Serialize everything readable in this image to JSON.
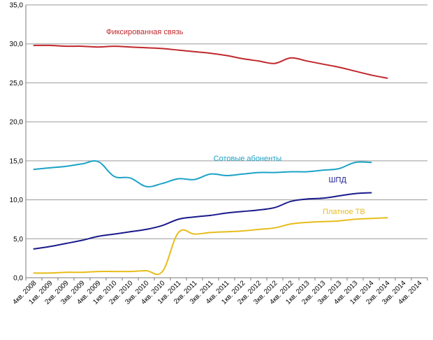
{
  "chart_data": {
    "type": "line",
    "title": "",
    "xlabel": "",
    "ylabel": "",
    "ylim": [
      0,
      35
    ],
    "y_ticks": [
      "0,0",
      "5,0",
      "10,0",
      "15,0",
      "20,0",
      "25,0",
      "30,0",
      "35,0"
    ],
    "grid": true,
    "legend": "inline labels",
    "categories": [
      "4кв. 2008",
      "1кв. 2009",
      "2кв. 2009",
      "3кв. 2009",
      "4кв. 2009",
      "1кв. 2010",
      "2кв. 2010",
      "3кв. 2010",
      "4кв. 2010",
      "1кв. 2011",
      "2кв. 2011",
      "3кв. 2011",
      "4кв. 2011",
      "1кв. 2012",
      "2кв. 2012",
      "3кв. 2012",
      "4кв. 2012",
      "1кв. 2013",
      "2кв. 2013",
      "3кв. 2013",
      "4кв. 2013",
      "1кв. 2014",
      "2кв. 2014",
      "3кв. 2014",
      "4кв. 2014"
    ],
    "series": [
      {
        "name": "Фиксированная связь",
        "color": "#c0282d",
        "values": [
          29.8,
          29.8,
          29.7,
          29.7,
          29.6,
          29.7,
          29.6,
          29.5,
          29.4,
          29.2,
          29.0,
          28.8,
          28.5,
          28.1,
          27.8,
          27.5,
          28.2,
          27.8,
          27.4,
          27.0,
          26.5,
          26.0,
          25.6,
          null,
          null
        ]
      },
      {
        "name": "Сотовые абоненты",
        "color": "#1ba3c6",
        "values": [
          13.9,
          14.1,
          14.3,
          14.6,
          14.9,
          13.0,
          12.8,
          11.7,
          12.1,
          12.7,
          12.6,
          13.3,
          13.1,
          13.3,
          13.5,
          13.5,
          13.6,
          13.6,
          13.8,
          14.0,
          14.8,
          14.8,
          null,
          null,
          null
        ]
      },
      {
        "name": "ШПД",
        "color": "#1a1a8c",
        "values": [
          3.7,
          4.0,
          4.4,
          4.8,
          5.3,
          5.6,
          5.9,
          6.2,
          6.7,
          7.5,
          7.8,
          8.0,
          8.3,
          8.5,
          8.7,
          9.0,
          9.8,
          10.1,
          10.2,
          10.5,
          10.8,
          10.9,
          null,
          null,
          null
        ]
      },
      {
        "name": "Платное ТВ",
        "color": "#e8bc1a",
        "values": [
          0.6,
          0.6,
          0.7,
          0.7,
          0.8,
          0.8,
          0.8,
          0.9,
          0.8,
          5.8,
          5.6,
          5.8,
          5.9,
          6.0,
          6.2,
          6.4,
          6.9,
          7.1,
          7.2,
          7.3,
          7.5,
          7.6,
          7.7,
          null,
          null
        ]
      }
    ]
  }
}
